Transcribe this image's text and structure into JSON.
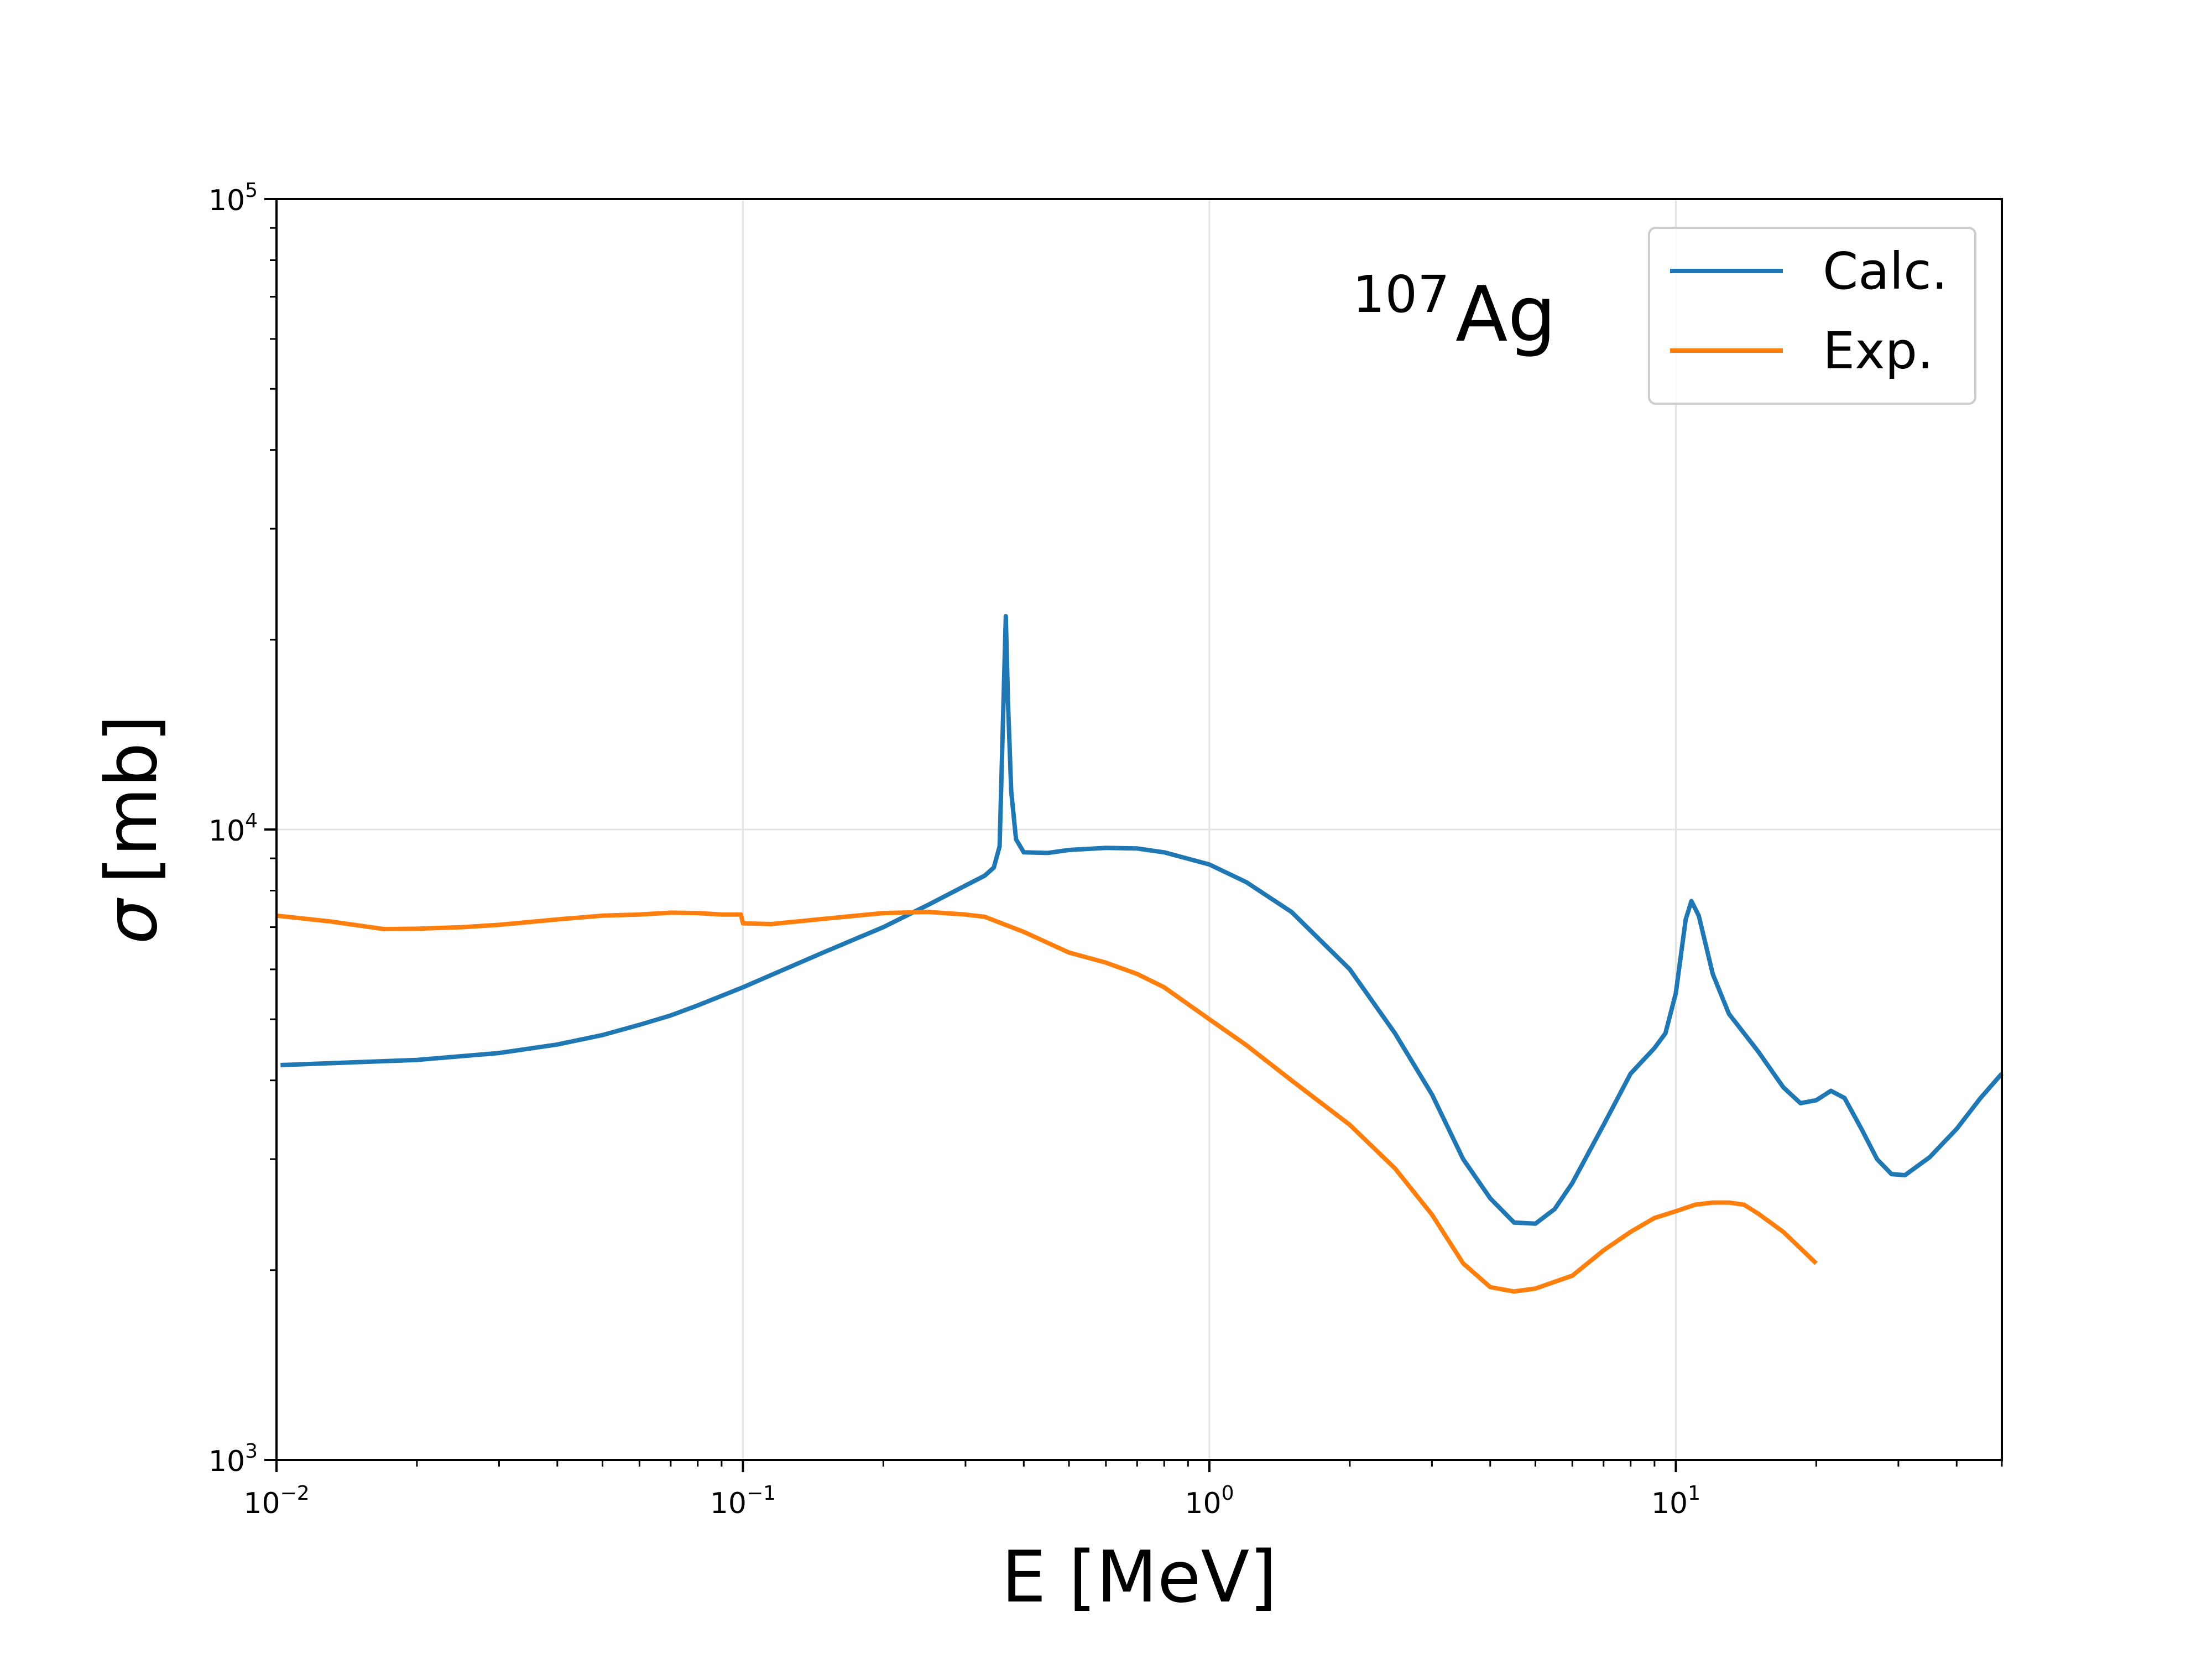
{
  "chart_data": {
    "type": "line",
    "title": "",
    "annotation": {
      "superscript": "107",
      "text": "Ag"
    },
    "xlabel": "E [MeV]",
    "ylabel_symbol": "σ",
    "ylabel": "[mb]",
    "xscale": "log",
    "yscale": "log",
    "xlim": [
      0.01,
      50
    ],
    "ylim": [
      1000,
      100000
    ],
    "grid": true,
    "legend_position": "top-right",
    "x_ticks": [
      {
        "base": "10",
        "exp": "−2"
      },
      {
        "base": "10",
        "exp": "−1"
      },
      {
        "base": "10",
        "exp": "0"
      },
      {
        "base": "10",
        "exp": "1"
      }
    ],
    "y_ticks": [
      {
        "base": "10",
        "exp": "3"
      },
      {
        "base": "10",
        "exp": "4"
      },
      {
        "base": "10",
        "exp": "5"
      }
    ],
    "series": [
      {
        "name": "Calc.",
        "color": "#1f77b4",
        "points": [
          [
            0.0102,
            4230
          ],
          [
            0.02,
            4310
          ],
          [
            0.03,
            4420
          ],
          [
            0.04,
            4560
          ],
          [
            0.05,
            4720
          ],
          [
            0.06,
            4900
          ],
          [
            0.07,
            5070
          ],
          [
            0.08,
            5260
          ],
          [
            0.1,
            5620
          ],
          [
            0.15,
            6400
          ],
          [
            0.2,
            7000
          ],
          [
            0.25,
            7600
          ],
          [
            0.3,
            8150
          ],
          [
            0.33,
            8450
          ],
          [
            0.345,
            8700
          ],
          [
            0.355,
            9400
          ],
          [
            0.362,
            16000
          ],
          [
            0.366,
            21800
          ],
          [
            0.37,
            16000
          ],
          [
            0.376,
            11500
          ],
          [
            0.385,
            9650
          ],
          [
            0.4,
            9200
          ],
          [
            0.45,
            9180
          ],
          [
            0.5,
            9280
          ],
          [
            0.6,
            9350
          ],
          [
            0.7,
            9330
          ],
          [
            0.8,
            9200
          ],
          [
            1.0,
            8800
          ],
          [
            1.2,
            8250
          ],
          [
            1.5,
            7400
          ],
          [
            2.0,
            6000
          ],
          [
            2.5,
            4750
          ],
          [
            3.0,
            3800
          ],
          [
            3.5,
            3000
          ],
          [
            4.0,
            2600
          ],
          [
            4.5,
            2380
          ],
          [
            5.0,
            2370
          ],
          [
            5.5,
            2500
          ],
          [
            6.0,
            2750
          ],
          [
            7.0,
            3400
          ],
          [
            8.0,
            4100
          ],
          [
            9.0,
            4500
          ],
          [
            9.5,
            4750
          ],
          [
            10.0,
            5500
          ],
          [
            10.5,
            7200
          ],
          [
            10.8,
            7700
          ],
          [
            11.2,
            7300
          ],
          [
            12.0,
            5900
          ],
          [
            13.0,
            5100
          ],
          [
            15.0,
            4450
          ],
          [
            17.0,
            3900
          ],
          [
            18.5,
            3680
          ],
          [
            20.0,
            3720
          ],
          [
            21.5,
            3850
          ],
          [
            23.0,
            3750
          ],
          [
            25.0,
            3350
          ],
          [
            27.0,
            3000
          ],
          [
            29.0,
            2840
          ],
          [
            31.0,
            2830
          ],
          [
            35.0,
            3020
          ],
          [
            40.0,
            3350
          ],
          [
            45.0,
            3750
          ],
          [
            50.0,
            4100
          ]
        ]
      },
      {
        "name": "Exp.",
        "color": "#ff7f0e",
        "points": [
          [
            0.01,
            7300
          ],
          [
            0.013,
            7150
          ],
          [
            0.017,
            6950
          ],
          [
            0.02,
            6960
          ],
          [
            0.025,
            7000
          ],
          [
            0.03,
            7060
          ],
          [
            0.04,
            7200
          ],
          [
            0.05,
            7300
          ],
          [
            0.06,
            7330
          ],
          [
            0.07,
            7380
          ],
          [
            0.08,
            7370
          ],
          [
            0.09,
            7330
          ],
          [
            0.099,
            7330
          ],
          [
            0.1,
            7100
          ],
          [
            0.115,
            7080
          ],
          [
            0.15,
            7220
          ],
          [
            0.2,
            7370
          ],
          [
            0.25,
            7400
          ],
          [
            0.3,
            7330
          ],
          [
            0.33,
            7270
          ],
          [
            0.4,
            6880
          ],
          [
            0.5,
            6380
          ],
          [
            0.6,
            6150
          ],
          [
            0.7,
            5900
          ],
          [
            0.8,
            5620
          ],
          [
            1.0,
            5000
          ],
          [
            1.2,
            4550
          ],
          [
            1.5,
            4000
          ],
          [
            2.0,
            3400
          ],
          [
            2.5,
            2900
          ],
          [
            3.0,
            2450
          ],
          [
            3.5,
            2050
          ],
          [
            4.0,
            1880
          ],
          [
            4.5,
            1850
          ],
          [
            5.0,
            1870
          ],
          [
            6.0,
            1960
          ],
          [
            7.0,
            2150
          ],
          [
            8.0,
            2300
          ],
          [
            9.0,
            2420
          ],
          [
            10.0,
            2480
          ],
          [
            11.0,
            2540
          ],
          [
            12.0,
            2560
          ],
          [
            13.0,
            2560
          ],
          [
            14.0,
            2540
          ],
          [
            15.0,
            2460
          ],
          [
            17.0,
            2300
          ],
          [
            20.0,
            2050
          ]
        ]
      }
    ]
  }
}
